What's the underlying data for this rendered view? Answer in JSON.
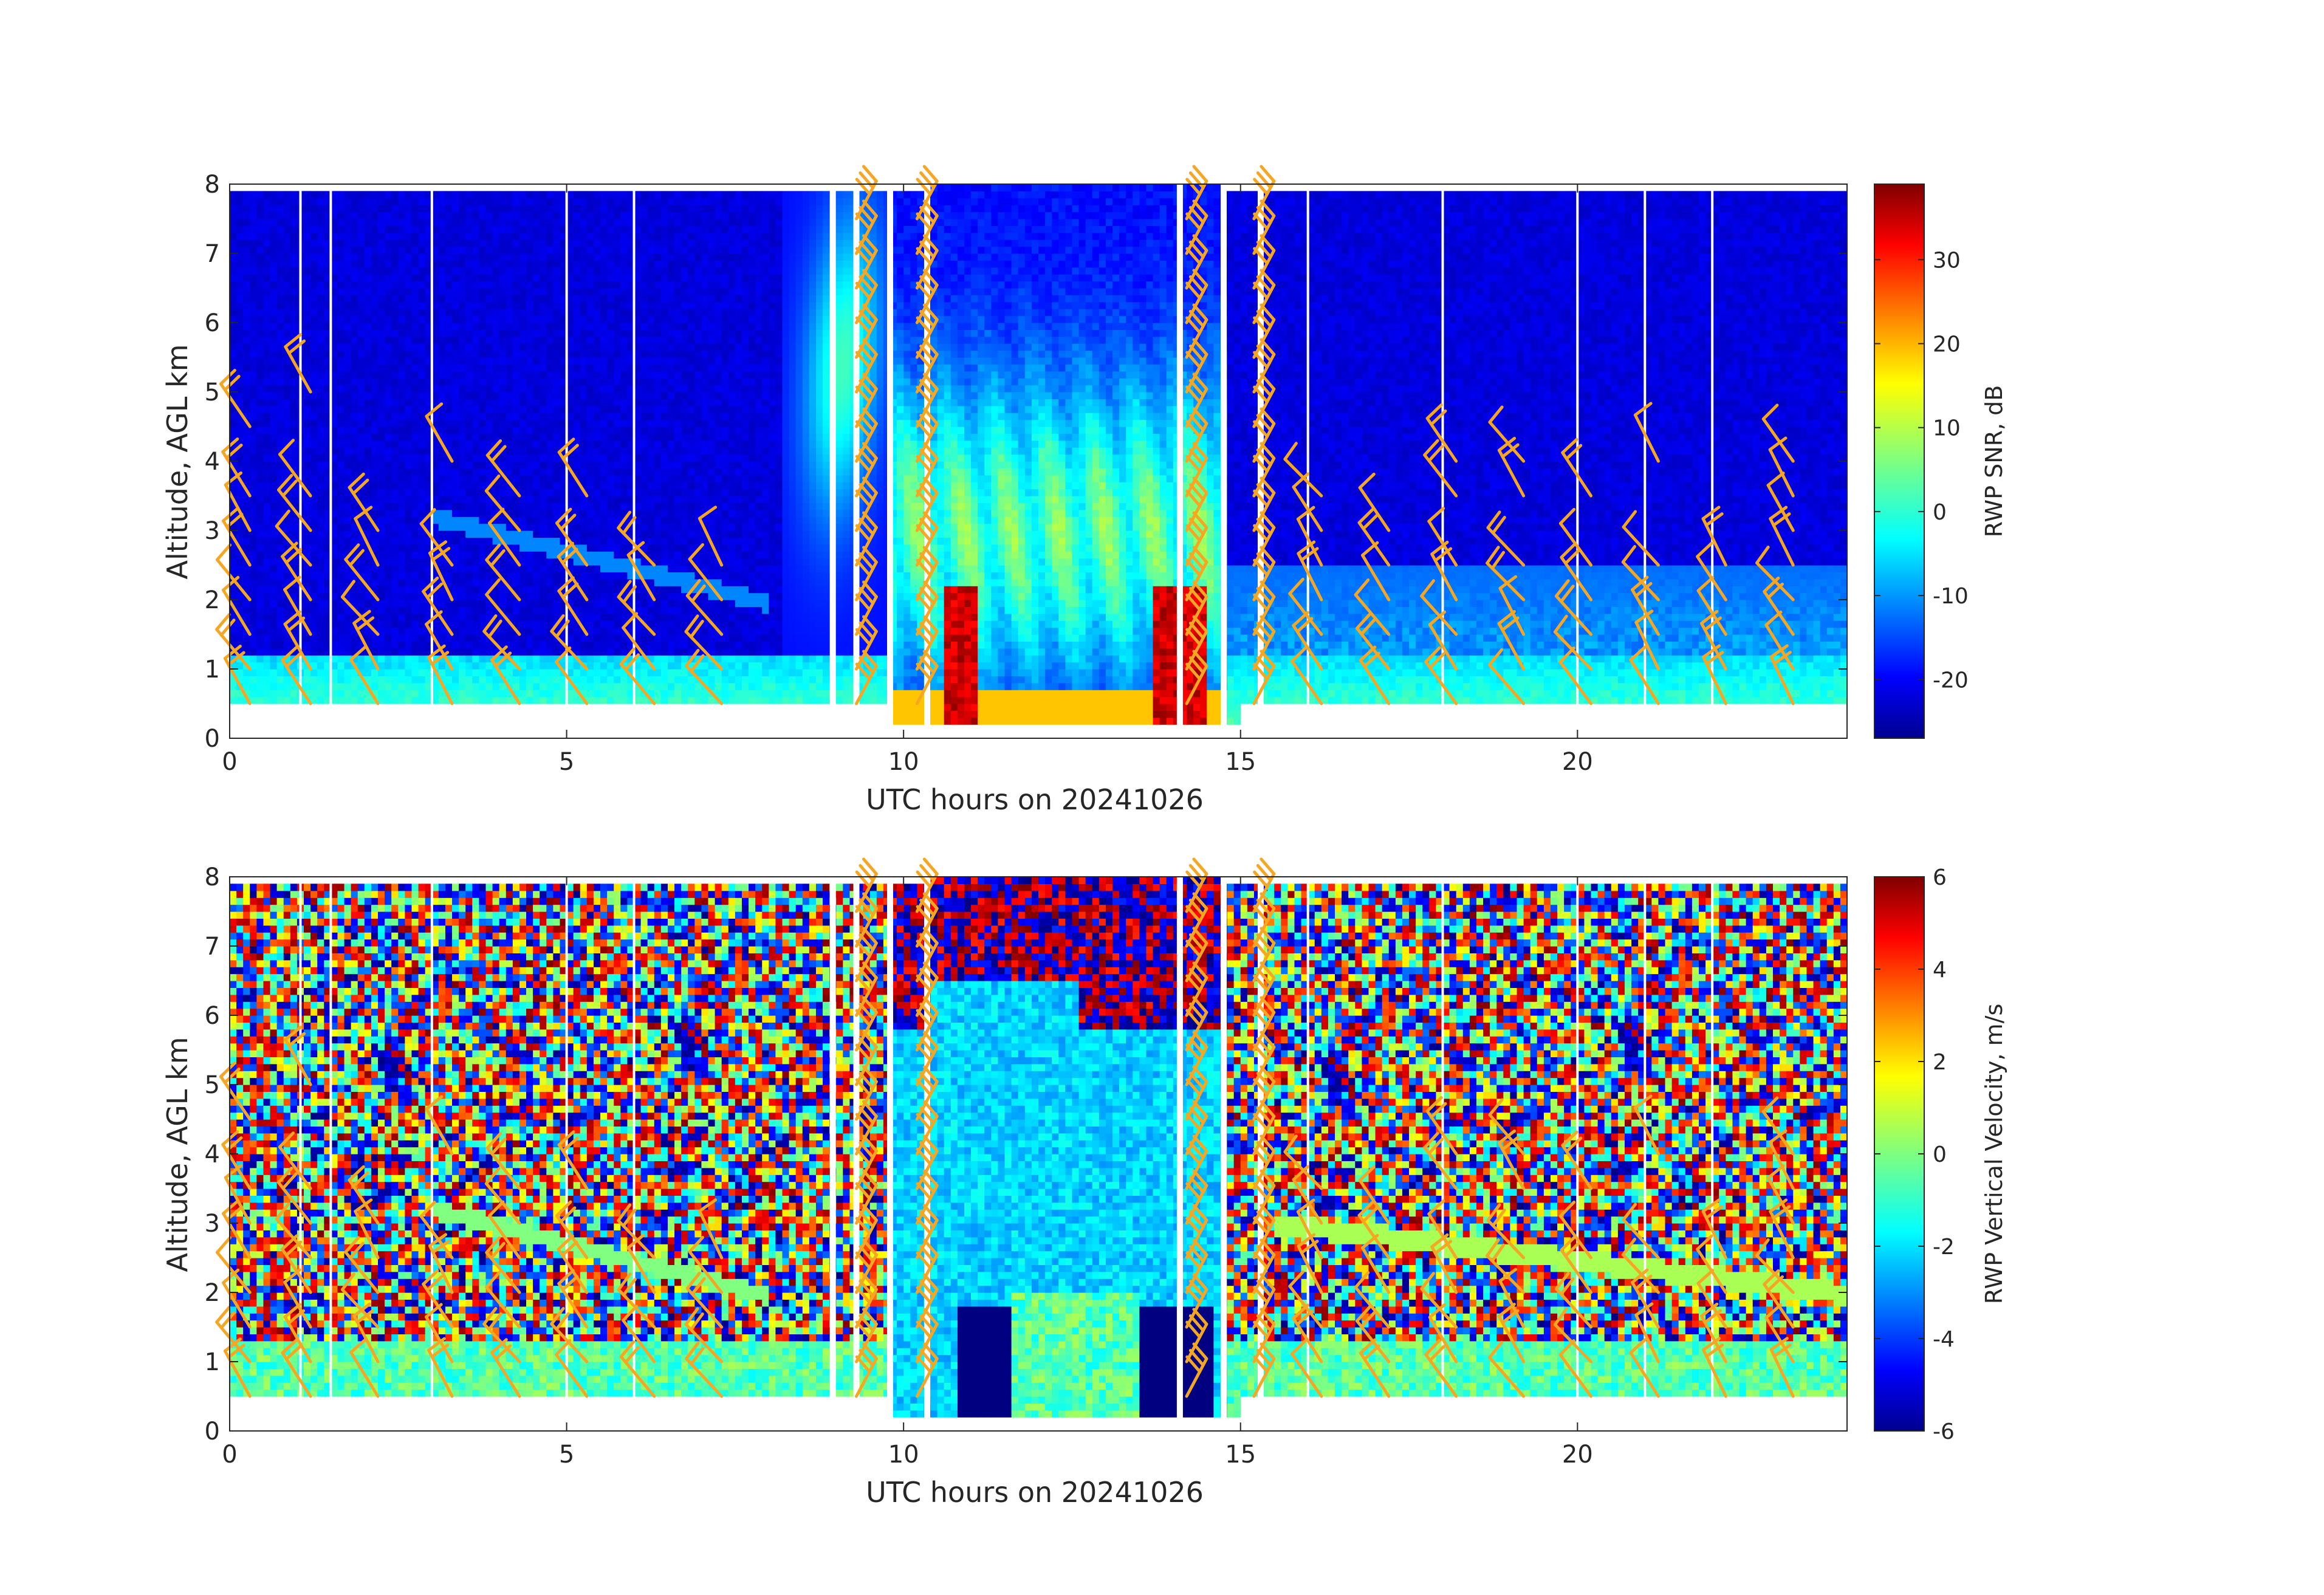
{
  "chart_data": [
    {
      "type": "heatmap",
      "title": "",
      "xlabel": "UTC hours on 20241026",
      "ylabel": "Altitude, AGL km",
      "xlim": [
        0,
        24
      ],
      "ylim": [
        0,
        8
      ],
      "xticks": [
        0,
        5,
        10,
        15,
        20
      ],
      "yticks": [
        0,
        1,
        2,
        3,
        4,
        5,
        6,
        7,
        8
      ],
      "colorbar": {
        "label": "RWP SNR, dB",
        "range": [
          -27,
          39
        ],
        "ticks": [
          -20,
          -10,
          0,
          10,
          20,
          30
        ],
        "colormap": "jet"
      },
      "overlay": "wind barbs (orange) at roughly hourly intervals, 0.5-7.5 km",
      "data_gaps_hours": [
        1.05,
        1.5,
        3.0,
        5.0,
        6.0,
        8.95,
        9.3,
        9.8,
        10.35,
        14.1,
        14.75,
        15.3,
        16.0,
        18.0,
        20.0,
        21.0,
        22.0
      ],
      "features": {
        "boundary_layer_km": [
          0.5,
          1.2
        ],
        "storm_hours": [
          9.8,
          14.8
        ],
        "storm_core_hours": [
          [
            10.6,
            11.1
          ],
          [
            13.7,
            14.5
          ]
        ],
        "storm_core_top_km": 2.2,
        "storm_echo_top_km": 6.5
      }
    },
    {
      "type": "heatmap",
      "title": "",
      "xlabel": "UTC hours on 20241026",
      "ylabel": "Altitude, AGL km",
      "xlim": [
        0,
        24
      ],
      "ylim": [
        0,
        8
      ],
      "xticks": [
        0,
        5,
        10,
        15,
        20
      ],
      "yticks": [
        0,
        1,
        2,
        3,
        4,
        5,
        6,
        7,
        8
      ],
      "colorbar": {
        "label": "RWP Vertical Velocity, m/s",
        "range": [
          -6,
          6
        ],
        "ticks": [
          -6,
          -4,
          -2,
          0,
          2,
          4,
          6
        ],
        "colormap": "jet"
      },
      "overlay": "wind barbs (orange) at roughly hourly intervals, 0.5-7.5 km",
      "features": {
        "noise_above_km": 1.3,
        "downdraft_hours": [
          [
            10.8,
            11.6
          ],
          [
            13.5,
            14.6
          ]
        ],
        "downdraft_top_km": 1.8,
        "downdraft_m_s": -6
      }
    }
  ],
  "colors": {
    "barb": "#f5a623",
    "gap": "#ffffff",
    "axis": "#262626"
  }
}
